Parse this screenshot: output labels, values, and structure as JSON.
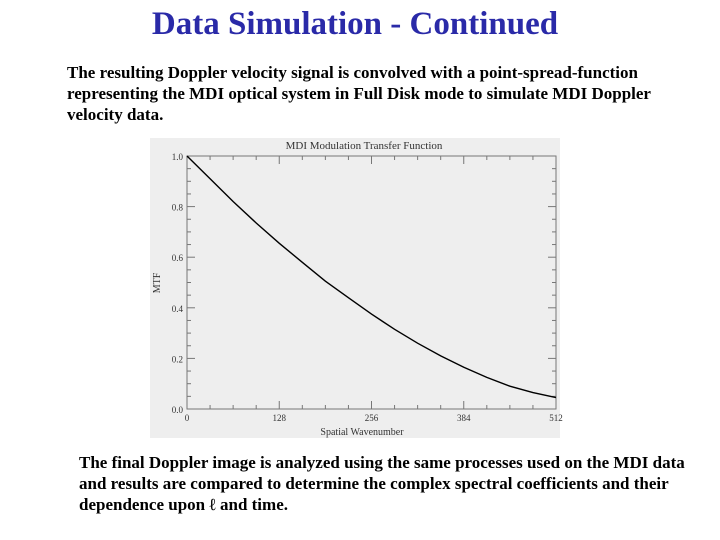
{
  "slide": {
    "title": "Data Simulation - Continued",
    "paragraph_1": "The resulting Doppler velocity signal is convolved with a point-spread-function representing the MDI optical system in Full Disk mode to simulate MDI Doppler velocity data.",
    "paragraph_2": "The final Doppler image is analyzed using the same processes used on the MDI data and results are compared to determine the complex spectral coefficients and their dependence upon ℓ and time.",
    "title_color": "#2a2aa8",
    "text_color": "#000000"
  },
  "chart_data": {
    "type": "line",
    "title": "MDI Modulation Transfer Function",
    "xlabel": "Spatial Wavenumber",
    "ylabel": "MTF",
    "xlim": [
      0,
      512
    ],
    "ylim": [
      0,
      1.0
    ],
    "x_ticks": [
      "0",
      "128",
      "256",
      "384",
      "512"
    ],
    "y_ticks": [
      "0.0",
      "0.2",
      "0.4",
      "0.6",
      "0.8",
      "1.0"
    ],
    "grid": false,
    "background": "#eeeeee",
    "series": [
      {
        "x": [
          0,
          32,
          64,
          96,
          128,
          160,
          192,
          224,
          256,
          288,
          320,
          352,
          384,
          416,
          448,
          480,
          512
        ],
        "y": [
          1.0,
          0.91,
          0.82,
          0.735,
          0.655,
          0.58,
          0.505,
          0.44,
          0.375,
          0.315,
          0.26,
          0.21,
          0.165,
          0.125,
          0.09,
          0.065,
          0.045
        ]
      }
    ]
  }
}
